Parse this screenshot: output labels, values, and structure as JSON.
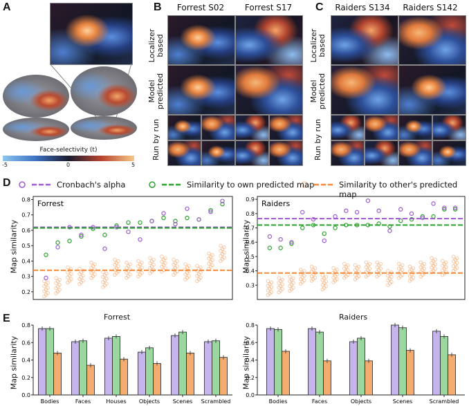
{
  "panels": {
    "A": "A",
    "B": "B",
    "C": "C",
    "D": "D",
    "E": "E"
  },
  "panelB": {
    "cols": [
      "Forrest S02",
      "Forrest S17"
    ]
  },
  "panelC": {
    "cols": [
      "Raiders S134",
      "Raiders S142"
    ]
  },
  "rows": {
    "localizer": "Localizer based",
    "model": "Model predicted",
    "run": "Run by run"
  },
  "colorbar": {
    "title": "Face-selectivity (t)",
    "ticks": [
      "-5",
      "0",
      "5"
    ]
  },
  "legend": {
    "cronbach": "Cronbach's alpha",
    "own": "Similarity to own predicted map",
    "other": "Similarity to other's predicted map"
  },
  "colors": {
    "purple": "#9b59d0",
    "green": "#2ca02c",
    "orange": "#f2883a",
    "bar_purple": "#c6b4ec",
    "bar_green": "#9ad8a0",
    "bar_orange": "#f4ab6f"
  },
  "ylabel": "Map similarity",
  "chart_data": [
    {
      "type": "scatter",
      "title": "Forrest",
      "panel": "D",
      "ylim": [
        0.15,
        0.82
      ],
      "yticks": [
        "0.2",
        "0.3",
        "0.4",
        "0.5",
        "0.6",
        "0.7",
        "0.8"
      ],
      "mean_lines": {
        "cronbach": 0.62,
        "own": 0.615,
        "other": 0.34
      },
      "cronbach": [
        0.29,
        0.49,
        0.62,
        0.57,
        0.62,
        0.48,
        0.62,
        0.59,
        0.54,
        0.66,
        0.71,
        0.64,
        0.74,
        0.67,
        0.72,
        0.79
      ],
      "own": [
        0.44,
        0.52,
        0.53,
        0.56,
        0.61,
        0.57,
        0.63,
        0.65,
        0.65,
        0.66,
        0.68,
        0.66,
        0.68,
        0.67,
        0.73,
        0.77
      ],
      "other_center": [
        0.22,
        0.24,
        0.31,
        0.3,
        0.34,
        0.28,
        0.36,
        0.34,
        0.35,
        0.37,
        0.38,
        0.36,
        0.33,
        0.32,
        0.4,
        0.45
      ]
    },
    {
      "type": "scatter",
      "title": "Raiders",
      "panel": "D",
      "ylim": [
        0.2,
        0.92
      ],
      "yticks": [
        "0.3",
        "0.4",
        "0.5",
        "0.6",
        "0.7",
        "0.8",
        "0.9"
      ],
      "mean_lines": {
        "cronbach": 0.765,
        "own": 0.72,
        "other": 0.385
      },
      "cronbach": [
        0.64,
        0.62,
        0.6,
        0.81,
        0.76,
        0.61,
        0.78,
        0.82,
        0.81,
        0.89,
        0.82,
        0.68,
        0.83,
        0.8,
        0.77,
        0.87,
        0.84,
        0.84
      ],
      "own": [
        0.56,
        0.56,
        0.59,
        0.7,
        0.72,
        0.66,
        0.7,
        0.72,
        0.72,
        0.72,
        0.73,
        0.71,
        0.75,
        0.76,
        0.78,
        0.78,
        0.83,
        0.83
      ],
      "other_center": [
        0.28,
        0.3,
        0.31,
        0.36,
        0.38,
        0.32,
        0.37,
        0.4,
        0.39,
        0.41,
        0.41,
        0.35,
        0.4,
        0.38,
        0.41,
        0.44,
        0.42,
        0.45
      ]
    },
    {
      "type": "bar",
      "title": "Forrest",
      "panel": "E",
      "ylim": [
        0,
        0.8
      ],
      "yticks": [
        "0.0",
        "0.2",
        "0.4",
        "0.6",
        "0.8"
      ],
      "categories": [
        "Bodies",
        "Faces",
        "Houses",
        "Objects",
        "Scenes",
        "Scrambled"
      ],
      "series": [
        {
          "name": "Cronbach's alpha",
          "values": [
            0.76,
            0.61,
            0.65,
            0.49,
            0.68,
            0.61
          ]
        },
        {
          "name": "Similarity to own predicted map",
          "values": [
            0.76,
            0.62,
            0.67,
            0.54,
            0.72,
            0.62
          ]
        },
        {
          "name": "Similarity to other's predicted map",
          "values": [
            0.48,
            0.34,
            0.41,
            0.36,
            0.48,
            0.43
          ]
        }
      ]
    },
    {
      "type": "bar",
      "title": "Raiders",
      "panel": "E",
      "ylim": [
        0,
        0.8
      ],
      "yticks": [
        "0.0",
        "0.2",
        "0.4",
        "0.6",
        "0.8"
      ],
      "categories": [
        "Bodies",
        "Faces",
        "Objects",
        "Scenes",
        "Scrambled"
      ],
      "series": [
        {
          "name": "Cronbach's alpha",
          "values": [
            0.76,
            0.76,
            0.61,
            0.8,
            0.73
          ]
        },
        {
          "name": "Similarity to own predicted map",
          "values": [
            0.75,
            0.72,
            0.65,
            0.77,
            0.67
          ]
        },
        {
          "name": "Similarity to other's predicted map",
          "values": [
            0.5,
            0.39,
            0.39,
            0.51,
            0.46
          ]
        }
      ]
    }
  ]
}
